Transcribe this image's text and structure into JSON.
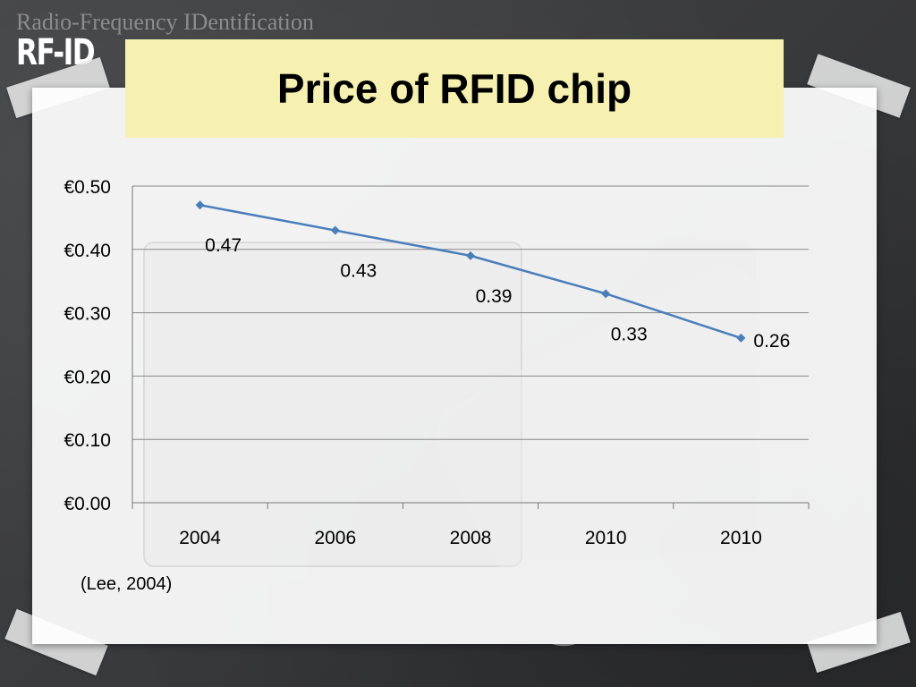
{
  "header": {
    "subtitle": "Radio-Frequency IDentification",
    "logo": "RF-ID"
  },
  "slide": {
    "title": "Price of RFID chip",
    "citation": "(Lee, 2004)"
  },
  "colors": {
    "title_bg": "#f6f1b0",
    "series": "#4a7ebb",
    "grid": "#888888"
  },
  "chart_data": {
    "type": "line",
    "categories": [
      "2004",
      "2006",
      "2008",
      "2010",
      "2010"
    ],
    "series": [
      {
        "values": [
          0.47,
          0.43,
          0.39,
          0.33,
          0.26
        ]
      }
    ],
    "data_labels": [
      "0.47",
      "0.43",
      "0.39",
      "0.33",
      "0.26"
    ],
    "y_ticks": [
      "€0.00",
      "€0.10",
      "€0.20",
      "€0.30",
      "€0.40",
      "€0.50"
    ],
    "ylim": [
      0,
      0.5
    ],
    "grid": true,
    "marker": "diamond"
  }
}
